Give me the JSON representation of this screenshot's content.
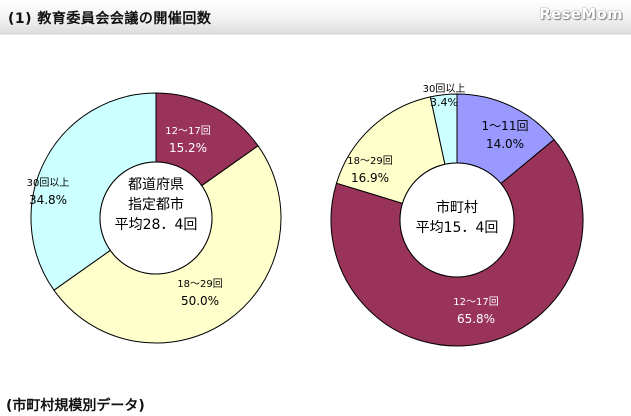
{
  "header": {
    "title": "(1)  教育委員会会議の開催回数",
    "watermark": "ReseMom"
  },
  "footer": {
    "title": "(市町村規模別データ)"
  },
  "colors": {
    "seg_12_17": "#99335a",
    "seg_18_29": "#ffffcc",
    "seg_30plus": "#ccffff",
    "seg_1_11": "#9999ff",
    "outline": "#000000"
  },
  "chart_data": [
    {
      "type": "pie",
      "donut": true,
      "center_label": [
        "都道府県",
        "指定都市",
        "平均28．4回"
      ],
      "slices": [
        {
          "label": "12～17回",
          "value": 15.2,
          "value_label": "15.2%",
          "color": "#99335a",
          "text_color": "#ffffff"
        },
        {
          "label": "18～29回",
          "value": 50.0,
          "value_label": "50.0%",
          "color": "#ffffcc",
          "text_color": "#000000"
        },
        {
          "label": "30回以上",
          "value": 34.8,
          "value_label": "34.8%",
          "color": "#ccffff",
          "text_color": "#000000"
        }
      ]
    },
    {
      "type": "pie",
      "donut": true,
      "center_label": [
        "市町村",
        "平均15．4回"
      ],
      "slices": [
        {
          "label": "1～11回",
          "value": 14.0,
          "value_label": "14.0%",
          "color": "#9999ff",
          "text_color": "#000000"
        },
        {
          "label": "12～17回",
          "value": 65.8,
          "value_label": "65.8%",
          "color": "#99335a",
          "text_color": "#ffffff"
        },
        {
          "label": "18～29回",
          "value": 16.9,
          "value_label": "16.9%",
          "color": "#ffffcc",
          "text_color": "#000000"
        },
        {
          "label": "30回以上",
          "value": 3.4,
          "value_label": "3.4%",
          "color": "#ccffff",
          "text_color": "#000000"
        }
      ]
    }
  ]
}
